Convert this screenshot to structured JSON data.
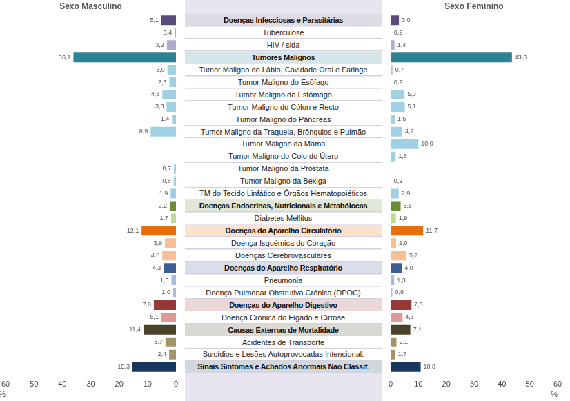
{
  "chart_data": {
    "type": "bar",
    "orientation": "horizontal",
    "categories": [
      "Doenças Infecciosas e Parasitárias",
      "Tuberculose",
      "HIV / sida",
      "Tumores Malignos",
      "Tumor Maligno do Lábio, Cavidade Oral e Faringe",
      "Tumor Maligno do Esôfago",
      "Tumor Maligno do Estômago",
      "Tumor Maligno do Cólon e Recto",
      "Tumor Maligno do Pâncreas",
      "Tumor Maligno da Traqueia, Brônquios e Pulmão",
      "Tumor Maligno da Mama",
      "Tumor Maligno do Colo do Útero",
      "Tumor Maligno da Próstata",
      "Tumor Maligno da Bexiga",
      "TM do Tecido Linfático e Órgãos Hematopoiéticos",
      "Doenças Endocrinas, Nutricionais e Metabólocas",
      "Diabetes Mellitus",
      "Doenças do Aparelho Circulatório",
      "Doença Isquémica do Coração",
      "Doenças Cerebrovasculares",
      "Doenças do Aparelho Respiratório",
      "Pneumonia",
      "Doença Pulmonar Obstrutiva Crónica (DPOC)",
      "Doenças do Aparelho Digestivo",
      "Doença Crónica do Fígado e Cirrose",
      "Causas Externas de Mortalidade",
      "Acidentes de Transporte",
      "Suicídios e Lesões Autoprovocadas Intencional.",
      "Sinais Sintomas e Achados Anormais Não Classif."
    ],
    "colors": [
      "#5b4a7c",
      "#b3a9d1",
      "#b3a9d1",
      "#2d8396",
      "#9fd0e3",
      "#9fd0e3",
      "#9fd0e3",
      "#9fd0e3",
      "#9fd0e3",
      "#9fd0e3",
      "#9fd0e3",
      "#9fd0e3",
      "#9fd0e3",
      "#9fd0e3",
      "#9fd0e3",
      "#6a8c35",
      "#bfd99a",
      "#e66f0c",
      "#f8bf96",
      "#f8bf96",
      "#3c5f96",
      "#a8bbdd",
      "#a8bbdd",
      "#993838",
      "#de9a9a",
      "#48412a",
      "#a39469",
      "#a39469",
      "#17375e"
    ],
    "series": [
      {
        "name": "Sexo Masculino",
        "values": [
          5.1,
          0.4,
          3.2,
          36.1,
          3.0,
          2.3,
          4.8,
          3.3,
          1.4,
          8.9,
          null,
          null,
          0.7,
          0.8,
          1.9,
          2.2,
          1.7,
          12.1,
          3.9,
          4.8,
          4.3,
          1.6,
          1.0,
          7.8,
          5.1,
          11.4,
          3.7,
          2.4,
          15.3
        ],
        "value_labels": [
          "5,1",
          "0,4",
          "3,2",
          "36,1",
          "3,0",
          "2,3",
          "4,8",
          "3,3",
          "1,4",
          "8,9",
          null,
          null,
          "0,7",
          "0,8",
          "1,9",
          "2,2",
          "1,7",
          "12,1",
          "3,9",
          "4,8",
          "4,3",
          "1,6",
          "1,0",
          "7,8",
          "5,1",
          "11,4",
          "3,7",
          "2,4",
          "15,3"
        ]
      },
      {
        "name": "Sexo Feminino",
        "values": [
          3.0,
          0.2,
          1.4,
          43.6,
          0.7,
          0.2,
          5.0,
          5.1,
          1.5,
          4.2,
          10.0,
          1.8,
          null,
          0.2,
          2.9,
          3.6,
          1.9,
          11.7,
          2.0,
          5.7,
          4.0,
          1.3,
          0.6,
          7.5,
          4.3,
          7.1,
          2.1,
          1.7,
          10.8
        ],
        "value_labels": [
          "3,0",
          "0,2",
          "1,4",
          "43,6",
          "0,7",
          "0,2",
          "5,0",
          "5,1",
          "1,5",
          "4,2",
          "10,0",
          "1,8",
          null,
          "0,2",
          "2,9",
          "3,6",
          "1,9",
          "11,7",
          "2,0",
          "5,7",
          "4,0",
          "1,3",
          "0,6",
          "7,5",
          "4,3",
          "7,1",
          "2,1",
          "1,7",
          "10,8"
        ]
      }
    ],
    "xlim": [
      0,
      60
    ],
    "xticks": [
      0,
      10,
      20,
      30,
      40,
      50,
      60
    ],
    "xlabel": "%",
    "grid": false,
    "data_labels": true
  }
}
